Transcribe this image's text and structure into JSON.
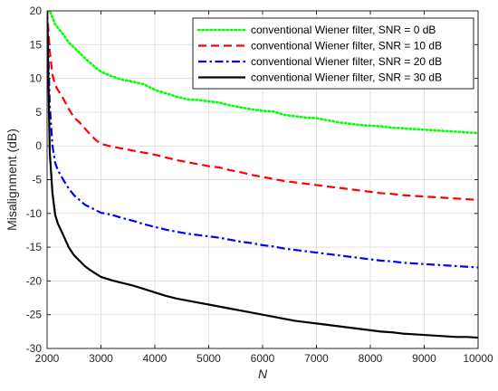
{
  "chart_data": {
    "type": "line",
    "title": "",
    "xlabel": "N",
    "ylabel": "Misalignment (dB)",
    "xlim": [
      2000,
      10000
    ],
    "ylim": [
      -30,
      20
    ],
    "xticks": [
      2000,
      3000,
      4000,
      5000,
      6000,
      7000,
      8000,
      9000,
      10000
    ],
    "yticks": [
      -30,
      -25,
      -20,
      -15,
      -10,
      -5,
      0,
      5,
      10,
      15,
      20
    ],
    "grid": true,
    "legend_position": "top-right",
    "series": [
      {
        "name": "conventional Wiener filter, SNR = 0 dB",
        "color": "#00ff00",
        "dash": "dotted",
        "x": [
          2000,
          2050,
          2100,
          2150,
          2200,
          2300,
          2400,
          2500,
          2600,
          2700,
          2800,
          2900,
          3000,
          3200,
          3400,
          3600,
          3800,
          4000,
          4200,
          4400,
          4600,
          4800,
          5000,
          5200,
          5400,
          5600,
          5800,
          6000,
          6200,
          6400,
          6600,
          6800,
          7000,
          7200,
          7400,
          7600,
          7800,
          8000,
          8200,
          8400,
          8600,
          8800,
          9000,
          9200,
          9400,
          9600,
          9800,
          10000
        ],
        "y": [
          20,
          20,
          19,
          18,
          17.5,
          16.5,
          15.3,
          14.6,
          13.8,
          13,
          12.3,
          11.6,
          11,
          10.3,
          9.8,
          9.5,
          9.1,
          8.3,
          7.8,
          7.3,
          6.9,
          6.8,
          6.6,
          6.4,
          6.0,
          5.7,
          5.4,
          5.2,
          5.1,
          4.6,
          4.4,
          4.2,
          4.1,
          3.8,
          3.5,
          3.3,
          3.1,
          3.0,
          2.9,
          2.7,
          2.6,
          2.5,
          2.4,
          2.3,
          2.2,
          2.1,
          2.0,
          1.9
        ]
      },
      {
        "name": "conventional Wiener filter, SNR = 10 dB",
        "color": "#ff0000",
        "dash": "dashed",
        "x": [
          2000,
          2050,
          2100,
          2150,
          2200,
          2300,
          2400,
          2500,
          2600,
          2700,
          2800,
          2900,
          3000,
          3200,
          3400,
          3600,
          3800,
          4000,
          4200,
          4400,
          4600,
          4800,
          5000,
          5200,
          5400,
          5600,
          5800,
          6000,
          6200,
          6400,
          6600,
          6800,
          7000,
          7200,
          7400,
          7600,
          7800,
          8000,
          8200,
          8400,
          8600,
          8800,
          9000,
          9200,
          9400,
          9600,
          9800,
          10000
        ],
        "y": [
          20,
          14,
          10.5,
          9,
          8.3,
          7.0,
          5.5,
          4.2,
          3.5,
          2.6,
          1.7,
          0.9,
          0.3,
          -0.1,
          -0.4,
          -0.7,
          -1.0,
          -1.3,
          -1.7,
          -2.1,
          -2.4,
          -2.7,
          -3.0,
          -3.2,
          -3.6,
          -3.9,
          -4.3,
          -4.6,
          -4.9,
          -5.2,
          -5.4,
          -5.6,
          -5.8,
          -6.0,
          -6.2,
          -6.4,
          -6.6,
          -6.8,
          -7.0,
          -7.1,
          -7.3,
          -7.4,
          -7.5,
          -7.6,
          -7.7,
          -7.8,
          -7.9,
          -8.0
        ]
      },
      {
        "name": "conventional Wiener filter, SNR = 20 dB",
        "color": "#0000ff",
        "dash": "dash-dot",
        "x": [
          2000,
          2050,
          2100,
          2150,
          2200,
          2300,
          2400,
          2500,
          2600,
          2700,
          2800,
          2900,
          3000,
          3200,
          3400,
          3600,
          3800,
          4000,
          4200,
          4400,
          4600,
          4800,
          5000,
          5200,
          5400,
          5600,
          5800,
          6000,
          6200,
          6400,
          6600,
          6800,
          7000,
          7200,
          7400,
          7600,
          7800,
          8000,
          8200,
          8400,
          8600,
          8800,
          9000,
          9200,
          9400,
          9600,
          9800,
          10000
        ],
        "y": [
          20,
          6,
          0,
          -2.5,
          -3.6,
          -5.0,
          -6.3,
          -7.3,
          -8.0,
          -8.7,
          -9.1,
          -9.5,
          -9.9,
          -10.2,
          -10.7,
          -11.1,
          -11.6,
          -12.0,
          -12.4,
          -12.7,
          -13.0,
          -13.2,
          -13.4,
          -13.6,
          -13.9,
          -14.2,
          -14.4,
          -14.7,
          -14.9,
          -15.2,
          -15.4,
          -15.6,
          -15.8,
          -16.0,
          -16.2,
          -16.4,
          -16.6,
          -16.8,
          -17.0,
          -17.1,
          -17.3,
          -17.4,
          -17.5,
          -17.6,
          -17.7,
          -17.8,
          -17.9,
          -18.0
        ]
      },
      {
        "name": "conventional Wiener filter, SNR = 30 dB",
        "color": "#000000",
        "dash": "solid",
        "x": [
          2000,
          2050,
          2100,
          2150,
          2200,
          2300,
          2400,
          2500,
          2600,
          2700,
          2800,
          2900,
          3000,
          3200,
          3400,
          3600,
          3800,
          4000,
          4200,
          4400,
          4600,
          4800,
          5000,
          5200,
          5400,
          5600,
          5800,
          6000,
          6200,
          6400,
          6600,
          6800,
          7000,
          7200,
          7400,
          7600,
          7800,
          8000,
          8200,
          8400,
          8600,
          8800,
          9000,
          9200,
          9400,
          9600,
          9800,
          10000
        ],
        "y": [
          20,
          -1,
          -7,
          -10.2,
          -11.5,
          -13.2,
          -15.0,
          -16.2,
          -17.0,
          -17.8,
          -18.4,
          -18.9,
          -19.4,
          -19.9,
          -20.3,
          -20.7,
          -21.2,
          -21.7,
          -22.2,
          -22.6,
          -22.9,
          -23.2,
          -23.5,
          -23.8,
          -24.1,
          -24.4,
          -24.7,
          -25.0,
          -25.3,
          -25.6,
          -25.9,
          -26.1,
          -26.3,
          -26.5,
          -26.7,
          -26.9,
          -27.1,
          -27.3,
          -27.5,
          -27.6,
          -27.8,
          -27.9,
          -28.0,
          -28.1,
          -28.2,
          -28.3,
          -28.3,
          -28.4
        ]
      }
    ]
  }
}
